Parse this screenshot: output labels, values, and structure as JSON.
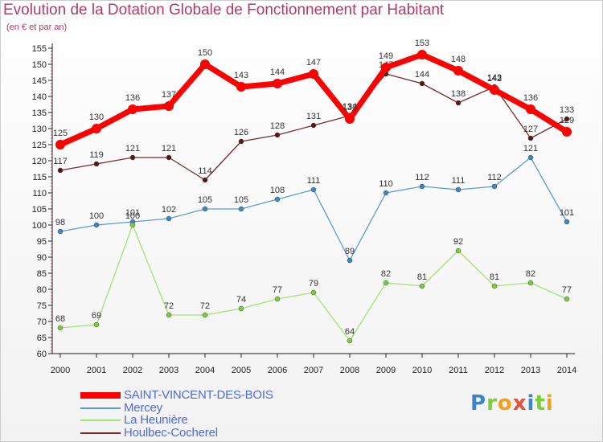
{
  "title": "Evolution de la Dotation Globale de Fonctionnement par Habitant",
  "subtitle": "(en € et par an)",
  "logo": {
    "text": "Proxiti"
  },
  "chart_data": {
    "type": "line",
    "title": "Evolution de la Dotation Globale de Fonctionnement par Habitant",
    "subtitle": "(en € et par an)",
    "x": [
      "2000",
      "2001",
      "2002",
      "2003",
      "2004",
      "2005",
      "2006",
      "2007",
      "2008",
      "2009",
      "2010",
      "2011",
      "2012",
      "2013",
      "2014"
    ],
    "ylim": [
      60,
      155
    ],
    "yticks": [
      60,
      65,
      70,
      75,
      80,
      85,
      90,
      95,
      100,
      105,
      110,
      115,
      120,
      125,
      130,
      135,
      140,
      145,
      150,
      155
    ],
    "grid": false,
    "legend_position": "bottom-left",
    "series": [
      {
        "name": "SAINT-VINCENT-DES-BOIS",
        "color": "#ff0000",
        "marker": "#ff0000",
        "width": 7,
        "values": [
          125,
          130,
          136,
          137,
          150,
          143,
          144,
          147,
          133,
          149,
          153,
          148,
          142,
          136,
          129
        ]
      },
      {
        "name": "Mercey",
        "color": "#5b9bd5",
        "marker": "#3d86c6",
        "width": 1.3,
        "values": [
          98,
          100,
          101,
          102,
          105,
          105,
          108,
          111,
          89,
          110,
          112,
          111,
          112,
          121,
          101
        ]
      },
      {
        "name": "La Heunière",
        "color": "#a6e07a",
        "marker": "#7ccd3c",
        "width": 1.3,
        "values": [
          68,
          69,
          100,
          72,
          72,
          74,
          77,
          79,
          64,
          82,
          81,
          92,
          81,
          82,
          77
        ]
      },
      {
        "name": "Houlbec-Cocherel",
        "color": "#7a2a2a",
        "marker": "#5a1414",
        "width": 1.3,
        "values": [
          117,
          119,
          121,
          121,
          114,
          126,
          128,
          131,
          134,
          147,
          144,
          138,
          143,
          127,
          133
        ]
      }
    ]
  }
}
